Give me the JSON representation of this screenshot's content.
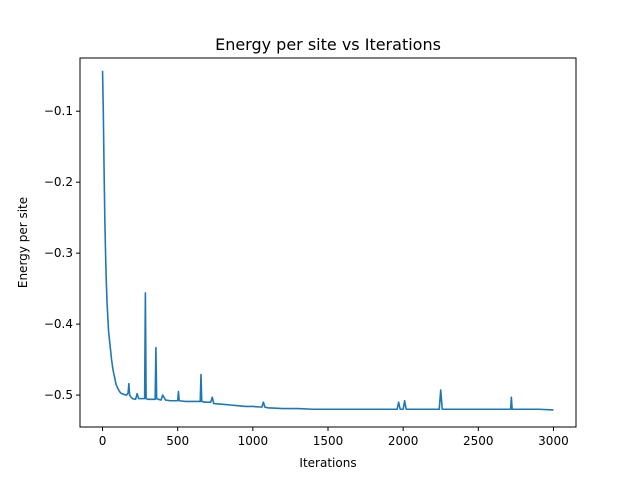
{
  "chart_data": {
    "type": "line",
    "title": "Energy per site vs Iterations",
    "xlabel": "Iterations",
    "ylabel": "Energy per site",
    "xlim": [
      -150,
      3150
    ],
    "ylim": [
      -0.545,
      -0.025
    ],
    "xticks": [
      0,
      500,
      1000,
      1500,
      2000,
      2500,
      3000
    ],
    "xtick_labels": [
      "0",
      "500",
      "1000",
      "1500",
      "2000",
      "2500",
      "3000"
    ],
    "yticks": [
      -0.1,
      -0.2,
      -0.3,
      -0.4,
      -0.5
    ],
    "ytick_labels": [
      "−0.1",
      "−0.2",
      "−0.3",
      "−0.4",
      "−0.5"
    ],
    "grid": false,
    "legend": "none",
    "series": [
      {
        "color": "#1f77b4",
        "x": [
          0,
          5,
          10,
          15,
          20,
          25,
          30,
          40,
          50,
          60,
          70,
          80,
          90,
          100,
          110,
          120,
          140,
          160,
          170,
          175,
          180,
          190,
          200,
          220,
          230,
          240,
          260,
          280,
          285,
          290,
          300,
          320,
          340,
          350,
          355,
          360,
          370,
          390,
          400,
          420,
          450,
          480,
          500,
          505,
          510,
          550,
          600,
          640,
          650,
          655,
          660,
          680,
          700,
          720,
          730,
          740,
          800,
          850,
          900,
          950,
          1000,
          1060,
          1070,
          1080,
          1100,
          1200,
          1300,
          1400,
          1500,
          1600,
          1700,
          1800,
          1900,
          1960,
          1970,
          1980,
          2000,
          2010,
          2020,
          2100,
          2200,
          2240,
          2250,
          2260,
          2300,
          2400,
          2500,
          2600,
          2700,
          2715,
          2720,
          2725,
          2800,
          2900,
          3000
        ],
        "y": [
          -0.043,
          -0.1,
          -0.18,
          -0.25,
          -0.3,
          -0.34,
          -0.37,
          -0.41,
          -0.43,
          -0.45,
          -0.465,
          -0.475,
          -0.485,
          -0.49,
          -0.494,
          -0.497,
          -0.499,
          -0.5,
          -0.497,
          -0.484,
          -0.5,
          -0.503,
          -0.505,
          -0.506,
          -0.498,
          -0.505,
          -0.505,
          -0.505,
          -0.356,
          -0.505,
          -0.506,
          -0.506,
          -0.506,
          -0.506,
          -0.433,
          -0.505,
          -0.506,
          -0.507,
          -0.5,
          -0.507,
          -0.508,
          -0.508,
          -0.508,
          -0.495,
          -0.508,
          -0.509,
          -0.509,
          -0.509,
          -0.509,
          -0.471,
          -0.509,
          -0.51,
          -0.51,
          -0.51,
          -0.503,
          -0.512,
          -0.513,
          -0.514,
          -0.515,
          -0.516,
          -0.516,
          -0.517,
          -0.51,
          -0.517,
          -0.518,
          -0.519,
          -0.519,
          -0.52,
          -0.52,
          -0.52,
          -0.52,
          -0.52,
          -0.52,
          -0.52,
          -0.51,
          -0.52,
          -0.52,
          -0.508,
          -0.52,
          -0.52,
          -0.52,
          -0.52,
          -0.493,
          -0.52,
          -0.52,
          -0.52,
          -0.52,
          -0.52,
          -0.52,
          -0.52,
          -0.503,
          -0.52,
          -0.52,
          -0.52,
          -0.521
        ]
      }
    ]
  }
}
